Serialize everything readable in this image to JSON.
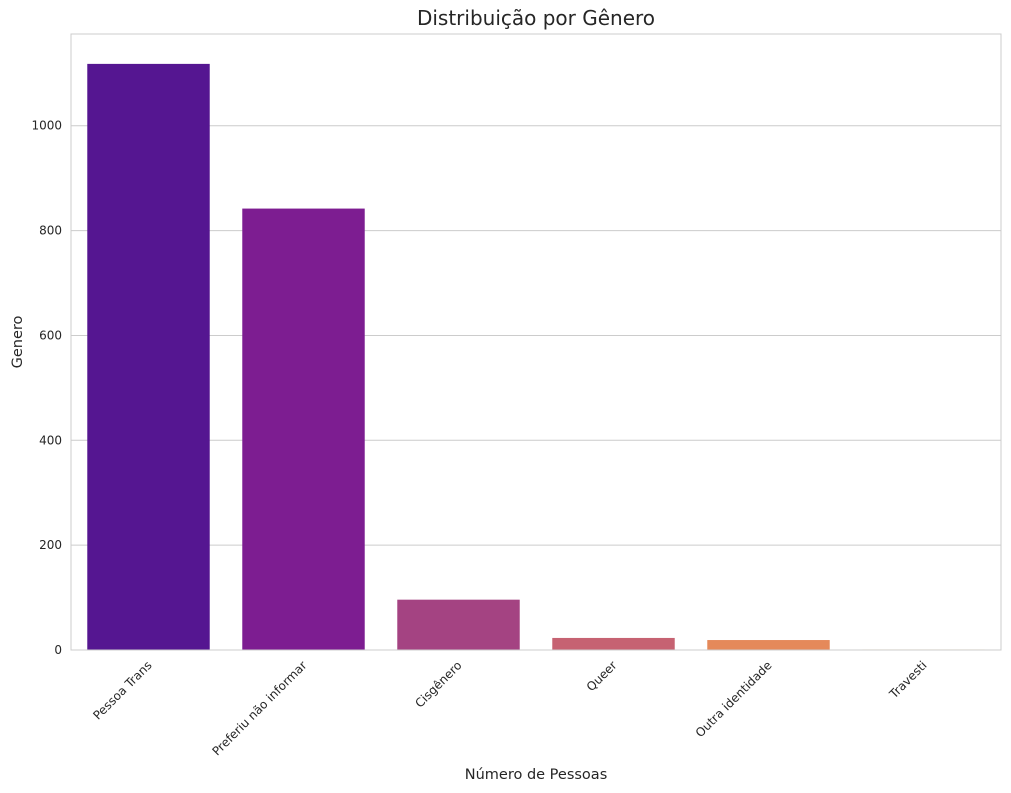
{
  "chart_data": {
    "type": "bar",
    "title": "Distribuição por Gênero",
    "xlabel": "Número de Pessoas",
    "ylabel": "Genero",
    "categories": [
      "Pessoa Trans",
      "Preferiu não informar",
      "Cisgênero",
      "Queer",
      "Outra identidade",
      "Travesti"
    ],
    "values": [
      1118,
      842,
      96,
      23,
      19,
      1
    ],
    "colors": [
      "#551691",
      "#7d1d91",
      "#a44382",
      "#c66272",
      "#e5895a",
      "#f8c637"
    ],
    "ylim": [
      0,
      1175
    ],
    "yticks": [
      0,
      200,
      400,
      600,
      800,
      1000
    ],
    "grid": "horizontal",
    "legend": "none"
  }
}
